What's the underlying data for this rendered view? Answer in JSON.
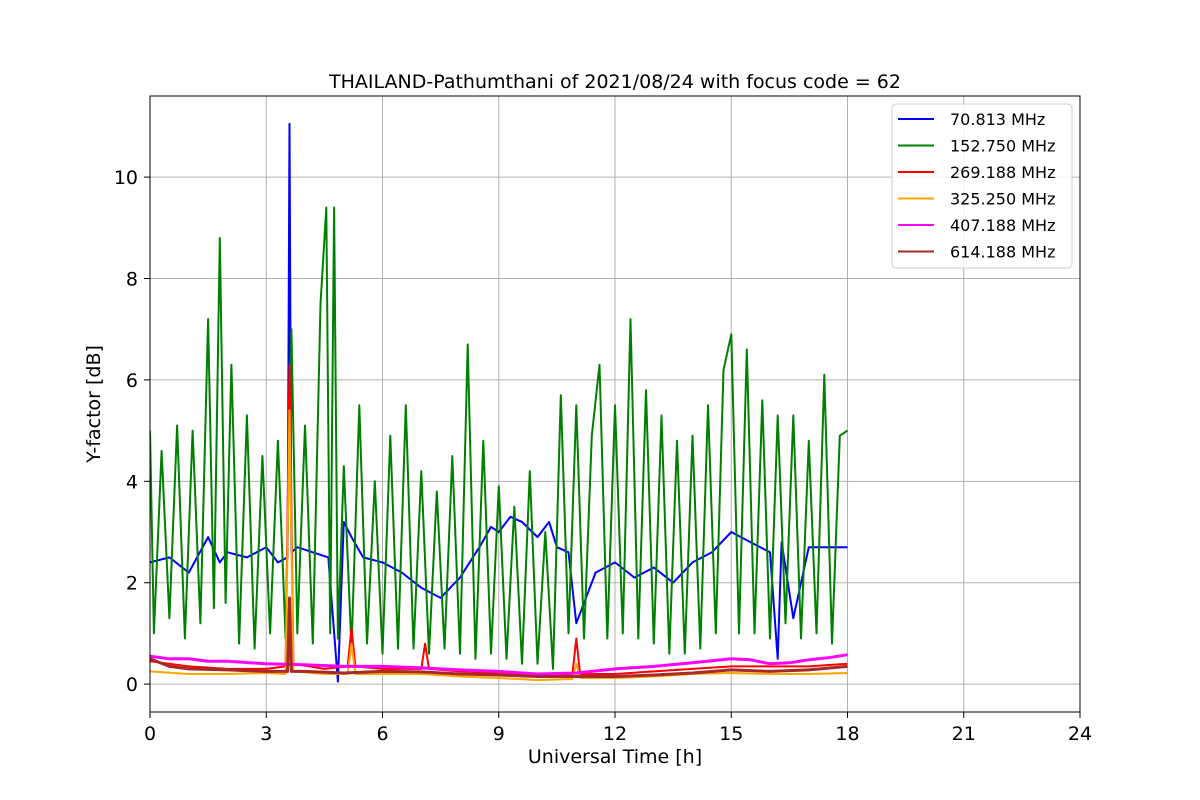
{
  "chart_data": {
    "type": "line",
    "title": "THAILAND-Pathumthani of 2021/08/24 with focus code = 62",
    "xlabel": "Universal Time [h]",
    "ylabel": "Y-factor [dB]",
    "xlim": [
      0,
      24
    ],
    "ylim": [
      -0.55,
      11.6
    ],
    "xticks": [
      0,
      3,
      6,
      9,
      12,
      15,
      18,
      21,
      24
    ],
    "yticks": [
      0,
      2,
      4,
      6,
      8,
      10
    ],
    "grid": true,
    "legend_position": "top-right",
    "series": [
      {
        "name": " 70.813 MHz",
        "color": "#0000ff",
        "x": [
          0.0,
          0.5,
          1.0,
          1.5,
          1.8,
          2.0,
          2.5,
          3.0,
          3.3,
          3.55,
          3.6,
          3.65,
          3.8,
          4.2,
          4.6,
          4.85,
          5.0,
          5.2,
          5.5,
          6.0,
          6.5,
          7.0,
          7.5,
          8.0,
          8.5,
          8.8,
          9.0,
          9.3,
          9.6,
          10.0,
          10.3,
          10.5,
          10.8,
          11.0,
          11.5,
          12.0,
          12.5,
          13.0,
          13.5,
          14.0,
          14.5,
          15.0,
          15.5,
          16.0,
          16.2,
          16.3,
          16.6,
          17.0,
          17.5,
          18.0
        ],
        "y": [
          2.4,
          2.5,
          2.2,
          2.9,
          2.4,
          2.6,
          2.5,
          2.7,
          2.4,
          2.5,
          11.05,
          2.6,
          2.7,
          2.6,
          2.5,
          0.05,
          3.2,
          2.9,
          2.5,
          2.4,
          2.2,
          1.9,
          1.7,
          2.1,
          2.7,
          3.1,
          3.0,
          3.3,
          3.2,
          2.9,
          3.2,
          2.7,
          2.6,
          1.2,
          2.2,
          2.4,
          2.1,
          2.3,
          2.0,
          2.4,
          2.6,
          3.0,
          2.8,
          2.6,
          0.5,
          2.8,
          1.3,
          2.7,
          2.7,
          2.7
        ]
      },
      {
        "name": "152.750 MHz",
        "color": "#008000",
        "x": [
          0.0,
          0.1,
          0.3,
          0.5,
          0.7,
          0.9,
          1.1,
          1.3,
          1.5,
          1.65,
          1.8,
          1.95,
          2.1,
          2.3,
          2.5,
          2.7,
          2.9,
          3.1,
          3.3,
          3.5,
          3.65,
          3.8,
          4.0,
          4.2,
          4.4,
          4.55,
          4.65,
          4.75,
          4.85,
          5.0,
          5.2,
          5.4,
          5.6,
          5.8,
          6.0,
          6.2,
          6.4,
          6.6,
          6.8,
          7.0,
          7.2,
          7.4,
          7.6,
          7.8,
          8.0,
          8.2,
          8.4,
          8.6,
          8.8,
          9.0,
          9.2,
          9.4,
          9.6,
          9.8,
          10.0,
          10.2,
          10.4,
          10.6,
          10.8,
          11.0,
          11.2,
          11.4,
          11.6,
          11.8,
          12.0,
          12.2,
          12.4,
          12.6,
          12.8,
          13.0,
          13.2,
          13.4,
          13.6,
          13.8,
          14.0,
          14.2,
          14.4,
          14.6,
          14.8,
          15.0,
          15.2,
          15.4,
          15.6,
          15.8,
          16.0,
          16.2,
          16.4,
          16.6,
          16.8,
          17.0,
          17.2,
          17.4,
          17.6,
          17.8,
          18.0
        ],
        "y": [
          5.0,
          1.0,
          4.6,
          1.3,
          5.1,
          0.9,
          5.0,
          1.2,
          7.2,
          1.5,
          8.8,
          1.6,
          6.3,
          0.8,
          5.3,
          0.7,
          4.5,
          1.0,
          4.8,
          0.9,
          7.0,
          1.0,
          5.1,
          0.8,
          7.5,
          9.4,
          1.0,
          9.4,
          0.9,
          4.3,
          0.7,
          5.5,
          0.8,
          4.0,
          0.6,
          4.9,
          0.7,
          5.5,
          0.7,
          4.2,
          0.6,
          3.8,
          0.7,
          4.5,
          0.6,
          6.7,
          0.5,
          4.8,
          0.6,
          3.9,
          0.5,
          3.5,
          0.4,
          4.2,
          0.4,
          3.0,
          0.3,
          5.7,
          1.0,
          5.5,
          0.9,
          4.9,
          6.3,
          0.9,
          5.5,
          1.0,
          7.2,
          0.9,
          5.8,
          0.8,
          5.3,
          0.6,
          4.8,
          0.6,
          4.9,
          0.7,
          5.5,
          1.0,
          6.2,
          6.9,
          1.0,
          6.6,
          1.0,
          5.6,
          0.9,
          5.3,
          1.2,
          5.3,
          0.9,
          4.8,
          1.0,
          6.1,
          0.8,
          4.9,
          5.0
        ]
      },
      {
        "name": "269.188 MHz",
        "color": "#ff0000",
        "x": [
          0.0,
          1.0,
          2.0,
          3.0,
          3.5,
          3.6,
          3.7,
          4.5,
          5.1,
          5.2,
          5.3,
          6.0,
          7.0,
          7.1,
          7.2,
          8.0,
          9.0,
          10.0,
          10.9,
          11.0,
          11.1,
          12.0,
          13.0,
          14.0,
          15.0,
          16.0,
          17.0,
          18.0
        ],
        "y": [
          0.45,
          0.35,
          0.3,
          0.3,
          0.35,
          6.3,
          0.4,
          0.3,
          0.35,
          1.1,
          0.35,
          0.3,
          0.3,
          0.8,
          0.3,
          0.25,
          0.22,
          0.18,
          0.2,
          0.9,
          0.2,
          0.2,
          0.25,
          0.3,
          0.35,
          0.35,
          0.35,
          0.4
        ]
      },
      {
        "name": "325.250 MHz",
        "color": "#ffa500",
        "x": [
          0.0,
          1.0,
          2.0,
          3.0,
          3.5,
          3.6,
          3.7,
          4.5,
          5.1,
          5.2,
          5.3,
          6.0,
          7.0,
          8.0,
          9.0,
          10.0,
          10.9,
          11.0,
          11.1,
          12.0,
          13.0,
          14.0,
          15.0,
          16.0,
          17.0,
          18.0
        ],
        "y": [
          0.25,
          0.2,
          0.2,
          0.22,
          0.2,
          5.4,
          0.25,
          0.2,
          0.2,
          0.8,
          0.2,
          0.2,
          0.2,
          0.15,
          0.12,
          0.08,
          0.1,
          0.4,
          0.12,
          0.12,
          0.15,
          0.2,
          0.22,
          0.2,
          0.2,
          0.22
        ]
      },
      {
        "name": "407.188 MHz",
        "color": "#ff00ff",
        "x": [
          0.0,
          0.5,
          1.0,
          1.5,
          2.0,
          3.0,
          4.0,
          5.0,
          6.0,
          7.0,
          8.0,
          9.0,
          10.0,
          11.0,
          12.0,
          13.0,
          14.0,
          15.0,
          15.5,
          16.0,
          16.5,
          17.0,
          17.5,
          18.0
        ],
        "y": [
          0.55,
          0.5,
          0.5,
          0.45,
          0.45,
          0.4,
          0.38,
          0.35,
          0.35,
          0.32,
          0.28,
          0.25,
          0.2,
          0.22,
          0.3,
          0.35,
          0.42,
          0.5,
          0.48,
          0.4,
          0.42,
          0.48,
          0.52,
          0.58
        ]
      },
      {
        "name": "614.188 MHz",
        "color": "#a52a2a",
        "x": [
          0.0,
          0.5,
          1.0,
          2.0,
          3.0,
          3.55,
          3.6,
          3.65,
          4.0,
          5.0,
          6.0,
          7.0,
          8.0,
          9.0,
          10.0,
          11.0,
          12.0,
          13.0,
          14.0,
          15.0,
          16.0,
          17.0,
          18.0
        ],
        "y": [
          0.5,
          0.35,
          0.3,
          0.28,
          0.25,
          0.25,
          1.7,
          0.25,
          0.25,
          0.22,
          0.25,
          0.24,
          0.2,
          0.18,
          0.15,
          0.15,
          0.15,
          0.18,
          0.22,
          0.28,
          0.25,
          0.28,
          0.35
        ]
      }
    ]
  }
}
